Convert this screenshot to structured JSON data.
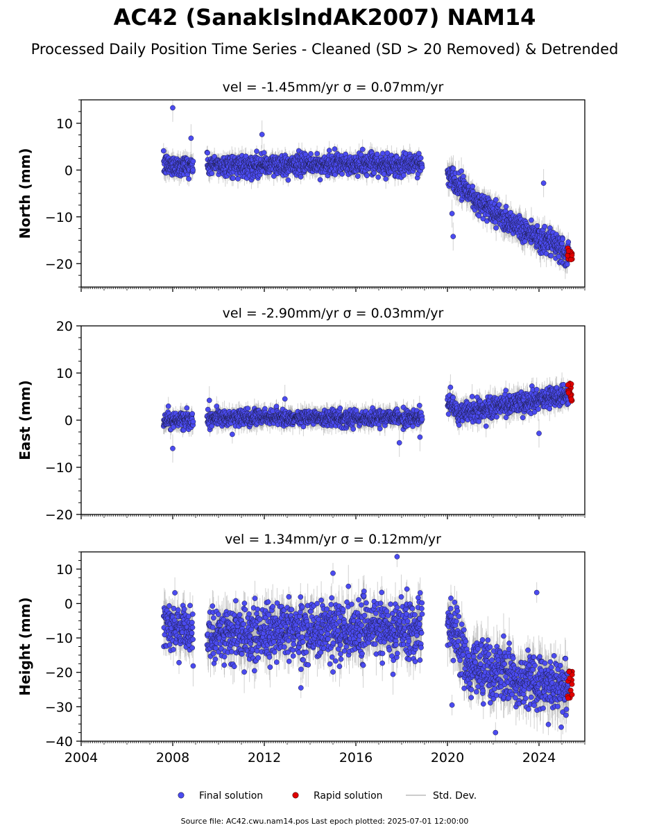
{
  "figure": {
    "title": "AC42 (SanakIslndAK2007) NAM14",
    "subtitle": "Processed Daily Position Time Series - Cleaned (SD > 20 Removed) & Detrended",
    "source_note": "Source file: AC42.cwu.nam14.pos  Last epoch plotted: 2025-07-01 12:00:00"
  },
  "legend": {
    "final": "Final solution",
    "rapid": "Rapid solution",
    "std": "Std. Dev."
  },
  "colors": {
    "final_fill": "#4b4bf0",
    "final_edge": "#1a1a40",
    "rapid_fill": "#e00000",
    "errorbar": "#9a9a9a"
  },
  "chart_data": [
    {
      "type": "scatter",
      "component": "north",
      "title": "vel = -1.45mm/yr   σ = 0.07mm/yr",
      "ylabel": "North (mm)",
      "xlim": [
        2004,
        2026
      ],
      "ylim": [
        -25,
        15
      ],
      "yticks": [
        10,
        0,
        -10,
        -20
      ],
      "ytick_labels": [
        "10",
        "0",
        "−10",
        "−20"
      ],
      "xticks": [
        2004,
        2008,
        2012,
        2016,
        2020,
        2024
      ],
      "xtick_labels": [],
      "segments": [
        {
          "name": "final",
          "x": [
            2007.6,
            2008.9
          ],
          "trend": [
            1.0,
            1.0
          ],
          "noise": 1.6,
          "sd": 1.5
        },
        {
          "name": "final",
          "x": [
            2009.5,
            2018.9
          ],
          "trend": [
            1.0,
            1.2
          ],
          "noise": 1.6,
          "sd": 1.5
        },
        {
          "name": "final",
          "x": [
            2020.0,
            2021.3
          ],
          "trend": [
            -0.5,
            -6.5
          ],
          "noise": 1.8,
          "sd": 2.0
        },
        {
          "name": "final",
          "x": [
            2021.3,
            2025.3
          ],
          "trend": [
            -7.0,
            -18.0
          ],
          "noise": 2.0,
          "sd": 2.0
        }
      ],
      "outliers": [
        [
          2008.0,
          13.3
        ],
        [
          2008.8,
          6.8
        ],
        [
          2011.9,
          7.6
        ],
        [
          2020.25,
          -14.2
        ],
        [
          2020.2,
          -9.3
        ],
        [
          2024.2,
          -2.8
        ]
      ],
      "rapid": {
        "x": [
          2025.25,
          2025.45
        ],
        "y": [
          -16.5,
          -19.5
        ]
      }
    },
    {
      "type": "scatter",
      "component": "east",
      "title": "vel = -2.90mm/yr   σ = 0.03mm/yr",
      "ylabel": "East (mm)",
      "xlim": [
        2004,
        2026
      ],
      "ylim": [
        -20,
        20
      ],
      "yticks": [
        20,
        10,
        0,
        -10,
        -20
      ],
      "ytick_labels": [
        "20",
        "10",
        "0",
        "−10",
        "−20"
      ],
      "xticks": [
        2004,
        2008,
        2012,
        2016,
        2020,
        2024
      ],
      "xtick_labels": [],
      "segments": [
        {
          "name": "final",
          "x": [
            2007.6,
            2008.9
          ],
          "trend": [
            0.0,
            0.0
          ],
          "noise": 1.2,
          "sd": 1.5
        },
        {
          "name": "final",
          "x": [
            2009.5,
            2018.9
          ],
          "trend": [
            0.5,
            0.5
          ],
          "noise": 1.2,
          "sd": 1.5
        },
        {
          "name": "final",
          "x": [
            2020.0,
            2020.5
          ],
          "trend": [
            4.0,
            1.0
          ],
          "noise": 1.6,
          "sd": 2.0
        },
        {
          "name": "final",
          "x": [
            2020.5,
            2025.3
          ],
          "trend": [
            1.5,
            5.5
          ],
          "noise": 1.5,
          "sd": 1.8
        }
      ],
      "outliers": [
        [
          2008.0,
          -6.0
        ],
        [
          2009.6,
          4.2
        ],
        [
          2018.8,
          -3.6
        ],
        [
          2017.9,
          -4.8
        ],
        [
          2024.0,
          -2.8
        ],
        [
          2012.9,
          4.5
        ]
      ],
      "rapid": {
        "x": [
          2025.25,
          2025.45
        ],
        "y": [
          3.5,
          8.0
        ]
      }
    },
    {
      "type": "scatter",
      "component": "height",
      "title": "vel = 1.34mm/yr   σ = 0.12mm/yr",
      "ylabel": "Height (mm)",
      "xlim": [
        2004,
        2026
      ],
      "ylim": [
        -40,
        15
      ],
      "yticks": [
        10,
        0,
        -10,
        -20,
        -30,
        -40
      ],
      "ytick_labels": [
        "10",
        "0",
        "−10",
        "−20",
        "−30",
        "−40"
      ],
      "xticks": [
        2004,
        2008,
        2012,
        2016,
        2020,
        2024
      ],
      "xtick_labels": [
        "2004",
        "2008",
        "2012",
        "2016",
        "2020",
        "2024"
      ],
      "segments": [
        {
          "name": "final",
          "x": [
            2007.6,
            2008.9
          ],
          "trend": [
            -7.0,
            -8.0
          ],
          "noise": 5.0,
          "sd": 4.0
        },
        {
          "name": "final",
          "x": [
            2009.5,
            2018.9
          ],
          "trend": [
            -9.0,
            -7.0
          ],
          "noise": 6.0,
          "sd": 4.5
        },
        {
          "name": "final",
          "x": [
            2020.0,
            2020.8
          ],
          "trend": [
            -5.0,
            -15.0
          ],
          "noise": 6.0,
          "sd": 5.0
        },
        {
          "name": "final",
          "x": [
            2020.8,
            2025.3
          ],
          "trend": [
            -18.0,
            -25.0
          ],
          "noise": 5.5,
          "sd": 5.0
        }
      ],
      "outliers": [
        [
          2017.8,
          13.6
        ],
        [
          2023.9,
          3.2
        ],
        [
          2022.1,
          -37.5
        ],
        [
          2013.6,
          -24.5
        ],
        [
          2020.2,
          -29.5
        ],
        [
          2015.0,
          8.8
        ]
      ],
      "rapid": {
        "x": [
          2025.25,
          2025.45
        ],
        "y": [
          -27.5,
          -19.5
        ]
      }
    }
  ]
}
